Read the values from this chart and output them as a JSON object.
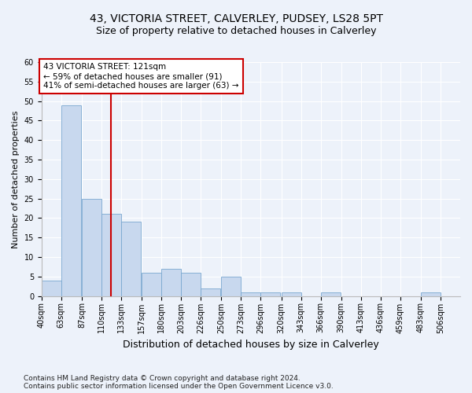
{
  "title_line1": "43, VICTORIA STREET, CALVERLEY, PUDSEY, LS28 5PT",
  "title_line2": "Size of property relative to detached houses in Calverley",
  "xlabel": "Distribution of detached houses by size in Calverley",
  "ylabel": "Number of detached properties",
  "footnote1": "Contains HM Land Registry data © Crown copyright and database right 2024.",
  "footnote2": "Contains public sector information licensed under the Open Government Licence v3.0.",
  "annotation_line1": "43 VICTORIA STREET: 121sqm",
  "annotation_line2": "← 59% of detached houses are smaller (91)",
  "annotation_line3": "41% of semi-detached houses are larger (63) →",
  "bar_color": "#c8d8ee",
  "bar_edge_color": "#7aa8d0",
  "vline_color": "#cc0000",
  "vline_x": 121,
  "categories": [
    "40sqm",
    "63sqm",
    "87sqm",
    "110sqm",
    "133sqm",
    "157sqm",
    "180sqm",
    "203sqm",
    "226sqm",
    "250sqm",
    "273sqm",
    "296sqm",
    "320sqm",
    "343sqm",
    "366sqm",
    "390sqm",
    "413sqm",
    "436sqm",
    "459sqm",
    "483sqm",
    "506sqm"
  ],
  "bin_edges": [
    40,
    63,
    87,
    110,
    133,
    157,
    180,
    203,
    226,
    250,
    273,
    296,
    320,
    343,
    366,
    390,
    413,
    436,
    459,
    483,
    506
  ],
  "bin_width": 23,
  "values": [
    4,
    49,
    25,
    21,
    19,
    6,
    7,
    6,
    2,
    5,
    1,
    1,
    1,
    0,
    1,
    0,
    0,
    0,
    0,
    1,
    0
  ],
  "ylim": [
    0,
    60
  ],
  "yticks": [
    0,
    5,
    10,
    15,
    20,
    25,
    30,
    35,
    40,
    45,
    50,
    55,
    60
  ],
  "background_color": "#edf2fa",
  "grid_color": "#ffffff",
  "annotation_box_facecolor": "#ffffff",
  "annotation_box_edgecolor": "#cc0000",
  "title_fontsize": 10,
  "subtitle_fontsize": 9,
  "ylabel_fontsize": 8,
  "xlabel_fontsize": 9,
  "tick_fontsize": 7,
  "annotation_fontsize": 7.5,
  "footnote_fontsize": 6.5
}
